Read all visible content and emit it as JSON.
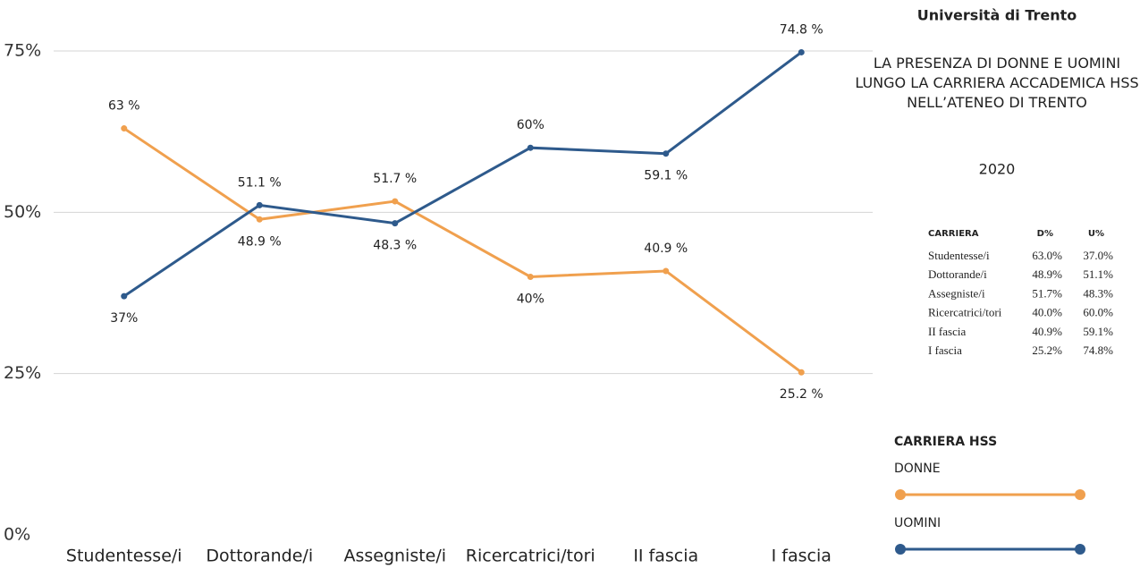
{
  "chart_data": {
    "type": "line",
    "categories": [
      "Studentesse/i",
      "Dottorande/i",
      "Assegniste/i",
      "Ricercatrici/tori",
      "II fascia",
      "I fascia"
    ],
    "series": [
      {
        "name": "DONNE",
        "color": "#f0a04e",
        "values": [
          63,
          48.9,
          51.7,
          40,
          40.9,
          25.2
        ],
        "value_labels": [
          "63 %",
          "48.9 %",
          "51.7 %",
          "40%",
          "40.9 %",
          "25.2 %"
        ]
      },
      {
        "name": "UOMINI",
        "color": "#2e5a8c",
        "values": [
          37,
          51.1,
          48.3,
          60,
          59.1,
          74.8
        ],
        "value_labels": [
          "37%",
          "51.1 %",
          "48.3 %",
          "60%",
          "59.1 %",
          "74.8 %"
        ]
      }
    ],
    "ylim": [
      0,
      75
    ],
    "yticks": [
      {
        "value": 0,
        "label": "0%"
      },
      {
        "value": 25,
        "label": "25%"
      },
      {
        "value": 50,
        "label": "50%"
      },
      {
        "value": 75,
        "label": "75%"
      }
    ],
    "grid": true,
    "legend_title": "CARRIERA HSS"
  },
  "panel": {
    "title": "Università di Trento",
    "subtitle": "LA PRESENZA DI DONNE E UOMINI LUNGO LA CARRIERA ACCADEMICA HSS NELL’ATENEO DI TRENTO",
    "year": "2020",
    "table": {
      "header": [
        "CARRIERA",
        "D%",
        "U%"
      ],
      "rows": [
        [
          "Studentesse/i",
          "63.0%",
          "37.0%"
        ],
        [
          "Dottorande/i",
          "48.9%",
          "51.1%"
        ],
        [
          "Assegniste/i",
          "51.7%",
          "48.3%"
        ],
        [
          "Ricercatrici/tori",
          "40.0%",
          "60.0%"
        ],
        [
          "II fascia",
          "40.9%",
          "59.1%"
        ],
        [
          "I fascia",
          "25.2%",
          "74.8%"
        ]
      ]
    }
  }
}
